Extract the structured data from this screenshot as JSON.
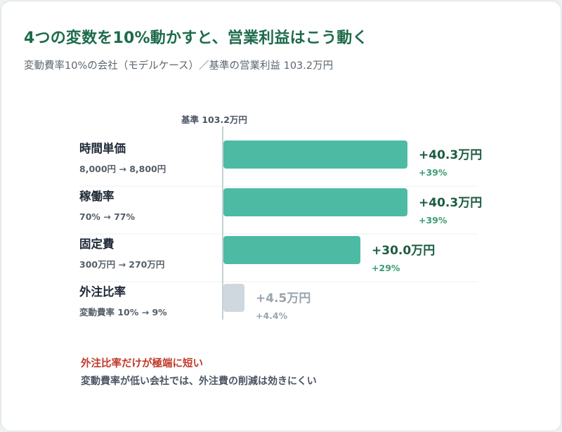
{
  "header": {
    "title": "4つの変数を10%動かすと、営業利益はこう動く",
    "subtitle": "変動費率10%の会社（モデルケース）／基準の営業利益 103.2万円"
  },
  "chart_data": {
    "type": "bar",
    "orientation": "horizontal",
    "baseline_label": "基準 103.2万円",
    "unit": "万円",
    "categories": [
      "時間単価",
      "稼働率",
      "固定費",
      "外注比率"
    ],
    "subtitles": [
      "8,000円 → 8,800円",
      "70% → 77%",
      "300万円 → 270万円",
      "変動費率 10% → 9%"
    ],
    "values": [
      40.3,
      40.3,
      30.0,
      4.5
    ],
    "value_labels": [
      "+40.3万円",
      "+40.3万円",
      "+30.0万円",
      "+4.5万円"
    ],
    "pct_labels": [
      "+39%",
      "+39%",
      "+29%",
      "+4.4%"
    ],
    "highlight": [
      true,
      true,
      true,
      false
    ],
    "colors": {
      "bar": "#4dbba3",
      "bar_muted": "#cfd8de",
      "value_text": "#1d5c40",
      "pct_text": "#3a9d74",
      "muted_text": "#9aa4ad",
      "label_text": "#1f2937",
      "sub_text": "#555e68",
      "baseline": "#c9d0d5"
    },
    "grid": false,
    "legend": "none"
  },
  "notes": {
    "highlight": "外注比率だけが極端に短い",
    "body": "変動費率が低い会社では、外注費の削減は効きにくい"
  }
}
